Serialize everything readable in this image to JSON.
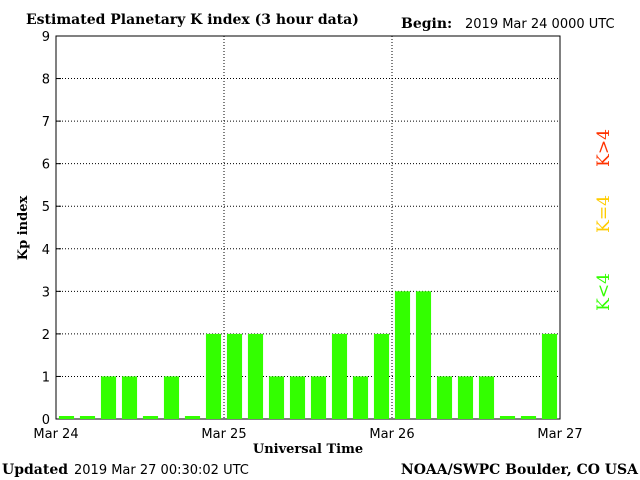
{
  "title": "Estimated Planetary K index (3 hour data)",
  "begin": {
    "label": "Begin:",
    "value": "2019 Mar 24 0000 UTC"
  },
  "footer": {
    "updated_label": "Updated",
    "updated_value": "2019 Mar 27 00:30:02 UTC",
    "source": "NOAA/SWPC Boulder, CO USA"
  },
  "legend": [
    {
      "text": "K>4",
      "color": "#ff3300"
    },
    {
      "text": "K=4",
      "color": "#ffcc00"
    },
    {
      "text": "K<4",
      "color": "#33ff00"
    }
  ],
  "chart_data": {
    "type": "bar",
    "title": "Estimated Planetary K index (3 hour data)",
    "xlabel": "Universal Time",
    "ylabel": "Kp index",
    "ylim": [
      0,
      9
    ],
    "yticks": [
      "0",
      "1",
      "2",
      "3",
      "4",
      "5",
      "6",
      "7",
      "8",
      "9"
    ],
    "x_tick_labels": [
      "Mar 24",
      "Mar 25",
      "Mar 26",
      "Mar 27"
    ],
    "grid": true,
    "bar_color": "#33ff00",
    "values": [
      0,
      0,
      1,
      1,
      0,
      1,
      0,
      2,
      2,
      2,
      1,
      1,
      1,
      2,
      1,
      2,
      3,
      3,
      1,
      1,
      1,
      0,
      0,
      2
    ]
  }
}
